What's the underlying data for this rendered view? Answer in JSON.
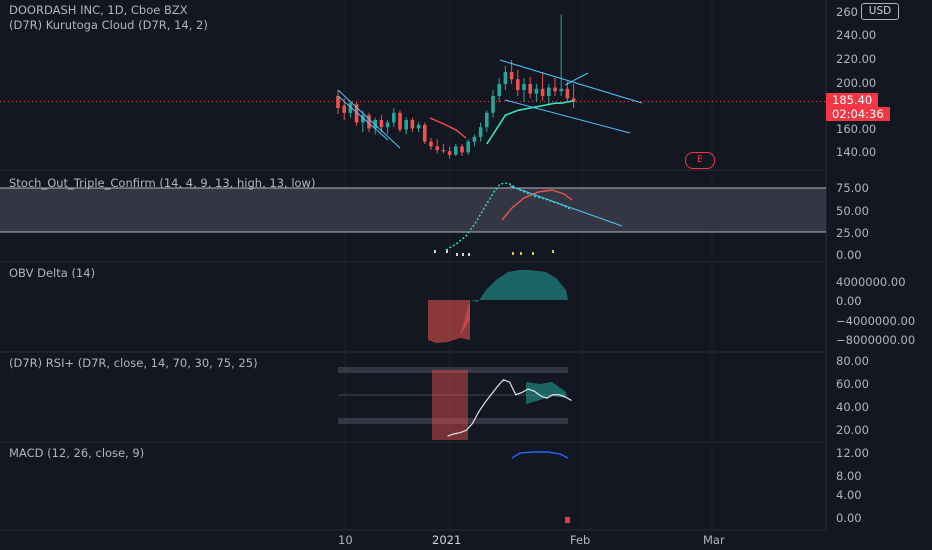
{
  "header": {
    "symbol_line": "DOORDASH INC, 1D, Cboe BZX",
    "indicator_line": "(D7R) Kurutoga Cloud (D7R, 14, 2)"
  },
  "currency_button": "USD",
  "price_axis": [
    "260",
    "240.00",
    "220.00",
    "200.00",
    "160.00",
    "140.00"
  ],
  "price_tag": {
    "price": "185.40",
    "countdown": "02:04:36"
  },
  "earnings_marker": "E",
  "panes": {
    "stoch": {
      "title": "Stoch_Out_Triple_Confirm (14, 4, 9, 13, high, 13, low)",
      "axis": [
        "75.00",
        "50.00",
        "25.00",
        "0.00"
      ]
    },
    "obv": {
      "title": "OBV Delta (14)",
      "axis": [
        "4000000.00",
        "0.00",
        "−4000000.00",
        "−8000000.00"
      ]
    },
    "rsi": {
      "title": "(D7R) RSI+ (D7R, close, 14, 70, 30, 75, 25)",
      "axis": [
        "80.00",
        "60.00",
        "40.00",
        "20.00"
      ]
    },
    "macd": {
      "title": "MACD (12, 26, close, 9)",
      "axis": [
        "12.00",
        "8.00",
        "4.00",
        "0.00"
      ]
    }
  },
  "time_axis": [
    "10",
    "2021",
    "Feb",
    "Mar"
  ],
  "colors": {
    "up": "#26a69a",
    "down": "#ef5350",
    "cloud": "#2ee8b6",
    "background": "#131722"
  },
  "chart_data": {
    "type": "candlestick",
    "title": "DOORDASH INC, 1D, Cboe BZX",
    "ylim": [
      125,
      265
    ],
    "candles": [
      {
        "o": 190,
        "h": 195,
        "l": 175,
        "c": 180
      },
      {
        "o": 182,
        "h": 188,
        "l": 170,
        "c": 176
      },
      {
        "o": 176,
        "h": 186,
        "l": 172,
        "c": 184
      },
      {
        "o": 183,
        "h": 185,
        "l": 165,
        "c": 168
      },
      {
        "o": 168,
        "h": 178,
        "l": 160,
        "c": 174
      },
      {
        "o": 174,
        "h": 176,
        "l": 160,
        "c": 163
      },
      {
        "o": 163,
        "h": 172,
        "l": 158,
        "c": 170
      },
      {
        "o": 170,
        "h": 174,
        "l": 160,
        "c": 164
      },
      {
        "o": 164,
        "h": 170,
        "l": 158,
        "c": 168
      },
      {
        "o": 168,
        "h": 180,
        "l": 164,
        "c": 176
      },
      {
        "o": 176,
        "h": 178,
        "l": 160,
        "c": 162
      },
      {
        "o": 162,
        "h": 172,
        "l": 158,
        "c": 170
      },
      {
        "o": 170,
        "h": 172,
        "l": 160,
        "c": 163
      },
      {
        "o": 163,
        "h": 168,
        "l": 160,
        "c": 166
      },
      {
        "o": 166,
        "h": 168,
        "l": 150,
        "c": 152
      },
      {
        "o": 152,
        "h": 155,
        "l": 145,
        "c": 148
      },
      {
        "o": 148,
        "h": 154,
        "l": 142,
        "c": 145
      },
      {
        "o": 145,
        "h": 150,
        "l": 142,
        "c": 144
      },
      {
        "o": 144,
        "h": 148,
        "l": 138,
        "c": 141
      },
      {
        "o": 141,
        "h": 150,
        "l": 140,
        "c": 148
      },
      {
        "o": 148,
        "h": 150,
        "l": 140,
        "c": 143
      },
      {
        "o": 143,
        "h": 154,
        "l": 141,
        "c": 152
      },
      {
        "o": 152,
        "h": 158,
        "l": 148,
        "c": 156
      },
      {
        "o": 156,
        "h": 168,
        "l": 152,
        "c": 164
      },
      {
        "o": 164,
        "h": 178,
        "l": 160,
        "c": 176
      },
      {
        "o": 176,
        "h": 195,
        "l": 172,
        "c": 190
      },
      {
        "o": 190,
        "h": 205,
        "l": 185,
        "c": 200
      },
      {
        "o": 200,
        "h": 215,
        "l": 195,
        "c": 210
      },
      {
        "o": 210,
        "h": 220,
        "l": 200,
        "c": 204
      },
      {
        "o": 204,
        "h": 212,
        "l": 190,
        "c": 195
      },
      {
        "o": 195,
        "h": 205,
        "l": 185,
        "c": 200
      },
      {
        "o": 200,
        "h": 206,
        "l": 188,
        "c": 192
      },
      {
        "o": 192,
        "h": 200,
        "l": 185,
        "c": 196
      },
      {
        "o": 196,
        "h": 210,
        "l": 186,
        "c": 190
      },
      {
        "o": 190,
        "h": 200,
        "l": 182,
        "c": 197
      },
      {
        "o": 197,
        "h": 205,
        "l": 190,
        "c": 194
      },
      {
        "o": 194,
        "h": 258,
        "l": 190,
        "c": 196
      },
      {
        "o": 196,
        "h": 202,
        "l": 185,
        "c": 188
      },
      {
        "o": 188,
        "h": 200,
        "l": 180,
        "c": 185
      }
    ],
    "cloud_line": [
      null,
      null,
      null,
      null,
      null,
      null,
      null,
      null,
      null,
      null,
      null,
      null,
      null,
      null,
      null,
      null,
      null,
      null,
      null,
      null,
      null,
      null,
      null,
      null,
      150,
      158,
      166,
      174,
      176,
      178,
      179,
      180,
      181,
      182,
      183,
      184,
      184,
      185,
      186
    ],
    "rsi": [
      null,
      null,
      null,
      null,
      null,
      null,
      null,
      null,
      null,
      null,
      null,
      null,
      null,
      null,
      null,
      null,
      null,
      null,
      19,
      21,
      22,
      24,
      30,
      40,
      48,
      55,
      62,
      68,
      66,
      55,
      57,
      60,
      58,
      54,
      52,
      55,
      55,
      53,
      50
    ]
  }
}
